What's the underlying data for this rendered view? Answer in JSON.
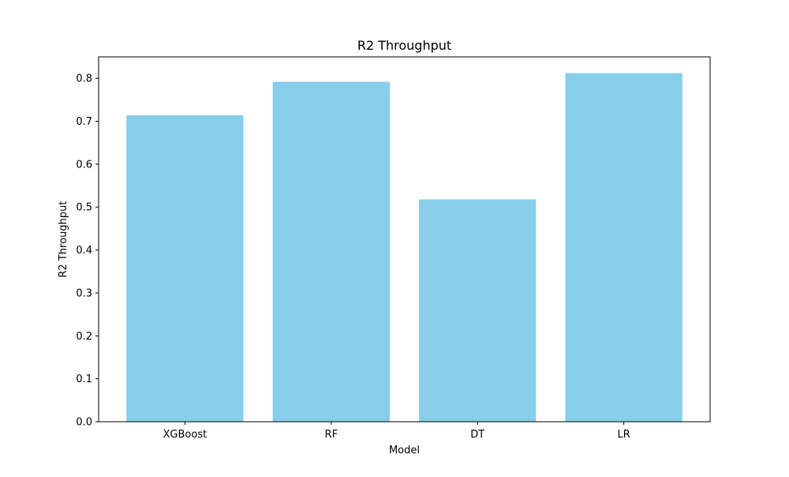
{
  "chart_data": {
    "type": "bar",
    "title": "R2 Throughput",
    "xlabel": "Model",
    "ylabel": "R2 Throughput",
    "categories": [
      "XGBoost",
      "RF",
      "DT",
      "LR"
    ],
    "values": [
      0.714,
      0.792,
      0.518,
      0.812
    ],
    "ylim": [
      0,
      0.85
    ],
    "yticks": [
      0.0,
      0.1,
      0.2,
      0.3,
      0.4,
      0.5,
      0.6,
      0.7,
      0.8
    ],
    "ytick_labels": [
      "0.0",
      "0.1",
      "0.2",
      "0.3",
      "0.4",
      "0.5",
      "0.6",
      "0.7",
      "0.8"
    ],
    "bar_color": "#87ceeb",
    "grid": false,
    "legend": "none"
  }
}
